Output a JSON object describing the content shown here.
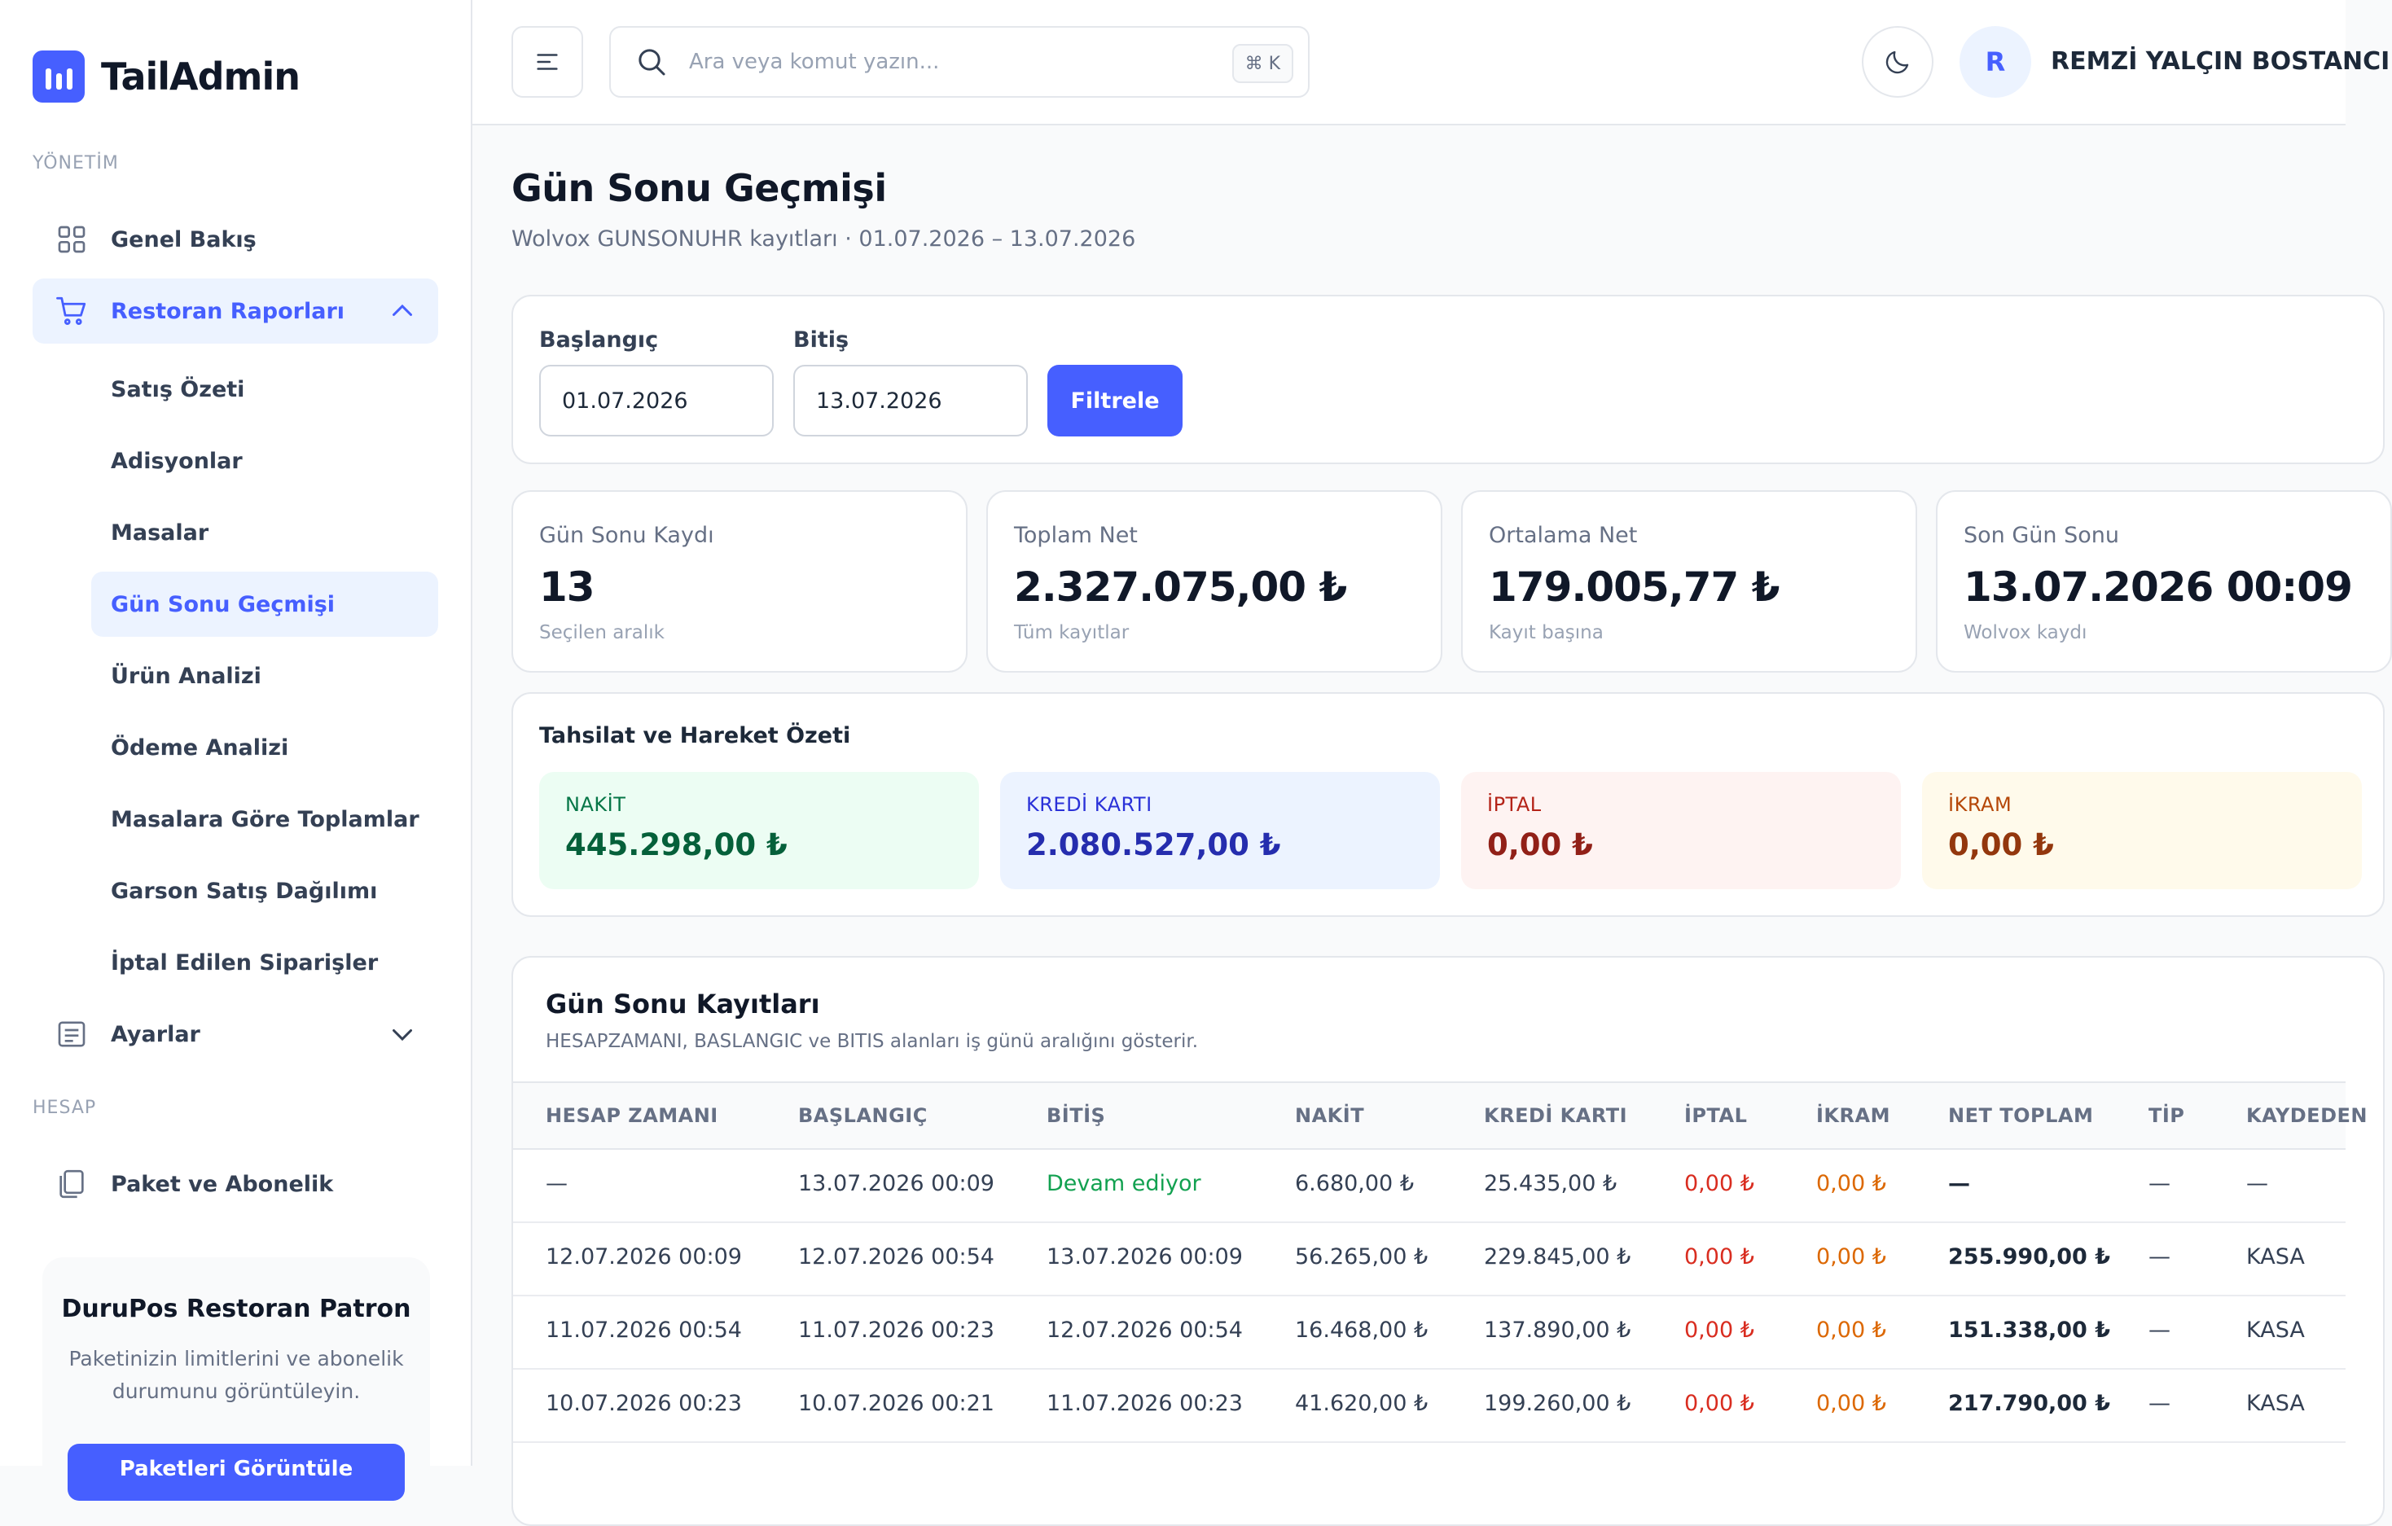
{
  "brand": {
    "name": "TailAdmin"
  },
  "sidebar": {
    "section_manage": "YÖNETİM",
    "section_account": "HESAP",
    "overview": "Genel Bakış",
    "reports": "Restoran Raporları",
    "sub_items": [
      "Satış Özeti",
      "Adisyonlar",
      "Masalar",
      "Gün Sonu Geçmişi",
      "Ürün Analizi",
      "Ödeme Analizi",
      "Masalara Göre Toplamlar",
      "Garson Satış Dağılımı",
      "İptal Edilen Siparişler"
    ],
    "settings": "Ayarlar",
    "package": "Paket ve Abonelik",
    "promo": {
      "title": "DuruPos Restoran Patron",
      "text": "Paketinizin limitlerini ve abonelik durumunu görüntüleyin.",
      "button": "Paketleri Görüntüle"
    }
  },
  "header": {
    "search_placeholder": "Ara veya komut yazın...",
    "shortcut": "⌘ K",
    "avatar_initial": "R",
    "user_name": "REMZİ YALÇIN BOSTANCI"
  },
  "page": {
    "title": "Gün Sonu Geçmişi",
    "subtitle": "Wolvox GUNSONUHR kayıtları · 01.07.2026 – 13.07.2026"
  },
  "filter": {
    "start_label": "Başlangıç",
    "start_value": "01.07.2026",
    "end_label": "Bitiş",
    "end_value": "13.07.2026",
    "button": "Filtrele"
  },
  "stats": [
    {
      "label": "Gün Sonu Kaydı",
      "value": "13",
      "hint": "Seçilen aralık"
    },
    {
      "label": "Toplam Net",
      "value": "2.327.075,00 ₺",
      "hint": "Tüm kayıtlar"
    },
    {
      "label": "Ortalama Net",
      "value": "179.005,77 ₺",
      "hint": "Kayıt başına"
    },
    {
      "label": "Son Gün Sonu",
      "value": "13.07.2026 00:09",
      "hint": "Wolvox kaydı"
    }
  ],
  "summary": {
    "title": "Tahsilat ve Hareket Özeti",
    "items": [
      {
        "label": "NAKİT",
        "value": "445.298,00 ₺"
      },
      {
        "label": "KREDİ KARTI",
        "value": "2.080.527,00 ₺"
      },
      {
        "label": "İPTAL",
        "value": "0,00 ₺"
      },
      {
        "label": "İKRAM",
        "value": "0,00 ₺"
      }
    ]
  },
  "table": {
    "title": "Gün Sonu Kayıtları",
    "subtitle": "HESAPZAMANI, BASLANGIC ve BITIS alanları iş günü aralığını gösterir.",
    "columns": [
      "HESAP ZAMANI",
      "BAŞLANGIÇ",
      "BİTİŞ",
      "NAKİT",
      "KREDİ KARTI",
      "İPTAL",
      "İKRAM",
      "NET TOPLAM",
      "TİP",
      "KAYDEDEN"
    ],
    "rows": [
      [
        "—",
        "13.07.2026 00:09",
        "Devam ediyor",
        "6.680,00 ₺",
        "25.435,00 ₺",
        "0,00 ₺",
        "0,00 ₺",
        "—",
        "—",
        "—"
      ],
      [
        "12.07.2026 00:09",
        "12.07.2026 00:54",
        "13.07.2026 00:09",
        "56.265,00 ₺",
        "229.845,00 ₺",
        "0,00 ₺",
        "0,00 ₺",
        "255.990,00 ₺",
        "—",
        "KASA"
      ],
      [
        "11.07.2026 00:54",
        "11.07.2026 00:23",
        "12.07.2026 00:54",
        "16.468,00 ₺",
        "137.890,00 ₺",
        "0,00 ₺",
        "0,00 ₺",
        "151.338,00 ₺",
        "—",
        "KASA"
      ],
      [
        "10.07.2026 00:23",
        "10.07.2026 00:21",
        "11.07.2026 00:23",
        "41.620,00 ₺",
        "199.260,00 ₺",
        "0,00 ₺",
        "0,00 ₺",
        "217.790,00 ₺",
        "—",
        "KASA"
      ]
    ]
  },
  "colors": {
    "accent": "#465fff",
    "cash_bg": "#ecfdf3",
    "cash_fg": "#067647",
    "card_bg": "#ecf3ff",
    "card_fg": "#2a31d8",
    "cancel_bg": "#fef3f2",
    "cancel_fg": "#b42318",
    "treat_bg": "#fffaeb",
    "treat_fg": "#b54708",
    "ongoing": "#12a150"
  },
  "icons": [
    "grid-icon",
    "cart-icon",
    "chevron-up-icon",
    "list-icon",
    "chevron-down-icon",
    "copy-icon",
    "menu-icon",
    "search-icon",
    "moon-icon"
  ]
}
